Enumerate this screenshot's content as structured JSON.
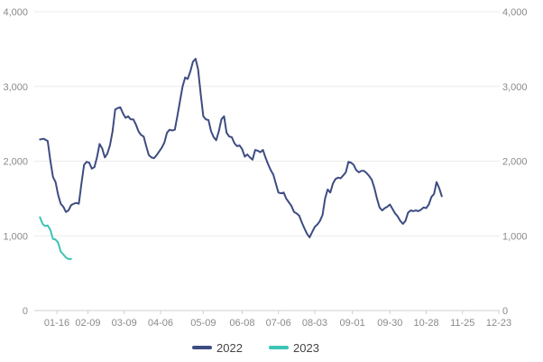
{
  "chart_data": {
    "type": "line",
    "x_tick_labels": [
      "01-16",
      "02-09",
      "03-09",
      "04-06",
      "05-09",
      "06-08",
      "07-06",
      "08-03",
      "09-01",
      "09-30",
      "10-28",
      "11-25",
      "12-23"
    ],
    "y_ticks_left": [
      "0",
      "1,000",
      "2,000",
      "3,000",
      "4,000"
    ],
    "y_ticks_right": [
      "0",
      "1,000",
      "2,000",
      "3,000",
      "4,000"
    ],
    "ylim": [
      0,
      4000
    ],
    "grid": true,
    "legend_position": "bottom",
    "series": [
      {
        "name": "2022",
        "color": "#3d4c82",
        "points": [
          [
            "01-03",
            2290
          ],
          [
            "01-06",
            2300
          ],
          [
            "01-09",
            2270
          ],
          [
            "01-11",
            2010
          ],
          [
            "01-13",
            1790
          ],
          [
            "01-15",
            1720
          ],
          [
            "01-17",
            1550
          ],
          [
            "01-19",
            1430
          ],
          [
            "01-21",
            1390
          ],
          [
            "01-23",
            1320
          ],
          [
            "01-25",
            1340
          ],
          [
            "01-27",
            1410
          ],
          [
            "01-29",
            1430
          ],
          [
            "01-31",
            1440
          ],
          [
            "02-02",
            1430
          ],
          [
            "02-04",
            1700
          ],
          [
            "02-06",
            1950
          ],
          [
            "02-08",
            1990
          ],
          [
            "02-10",
            1980
          ],
          [
            "02-12",
            1900
          ],
          [
            "02-14",
            1920
          ],
          [
            "02-16",
            2050
          ],
          [
            "02-18",
            2230
          ],
          [
            "02-20",
            2170
          ],
          [
            "02-22",
            2050
          ],
          [
            "02-24",
            2100
          ],
          [
            "02-26",
            2210
          ],
          [
            "02-28",
            2400
          ],
          [
            "03-02",
            2690
          ],
          [
            "03-04",
            2710
          ],
          [
            "03-06",
            2720
          ],
          [
            "03-08",
            2640
          ],
          [
            "03-10",
            2580
          ],
          [
            "03-12",
            2600
          ],
          [
            "03-14",
            2560
          ],
          [
            "03-16",
            2560
          ],
          [
            "03-18",
            2490
          ],
          [
            "03-20",
            2400
          ],
          [
            "03-22",
            2350
          ],
          [
            "03-24",
            2330
          ],
          [
            "03-26",
            2200
          ],
          [
            "03-28",
            2080
          ],
          [
            "03-30",
            2050
          ],
          [
            "04-01",
            2040
          ],
          [
            "04-03",
            2080
          ],
          [
            "04-05",
            2130
          ],
          [
            "04-07",
            2180
          ],
          [
            "04-09",
            2250
          ],
          [
            "04-11",
            2380
          ],
          [
            "04-13",
            2420
          ],
          [
            "04-15",
            2410
          ],
          [
            "04-17",
            2420
          ],
          [
            "04-19",
            2600
          ],
          [
            "04-21",
            2800
          ],
          [
            "04-23",
            3000
          ],
          [
            "04-25",
            3120
          ],
          [
            "04-27",
            3100
          ],
          [
            "04-29",
            3200
          ],
          [
            "05-01",
            3330
          ],
          [
            "05-03",
            3370
          ],
          [
            "05-05",
            3230
          ],
          [
            "05-07",
            2900
          ],
          [
            "05-09",
            2600
          ],
          [
            "05-11",
            2560
          ],
          [
            "05-13",
            2550
          ],
          [
            "05-15",
            2400
          ],
          [
            "05-17",
            2320
          ],
          [
            "05-19",
            2280
          ],
          [
            "05-21",
            2400
          ],
          [
            "05-23",
            2560
          ],
          [
            "05-25",
            2600
          ],
          [
            "05-27",
            2380
          ],
          [
            "05-29",
            2330
          ],
          [
            "05-31",
            2320
          ],
          [
            "06-02",
            2240
          ],
          [
            "06-04",
            2200
          ],
          [
            "06-06",
            2210
          ],
          [
            "06-08",
            2160
          ],
          [
            "06-10",
            2060
          ],
          [
            "06-12",
            2090
          ],
          [
            "06-14",
            2050
          ],
          [
            "06-16",
            2020
          ],
          [
            "06-18",
            2150
          ],
          [
            "06-20",
            2140
          ],
          [
            "06-22",
            2120
          ],
          [
            "06-24",
            2150
          ],
          [
            "06-26",
            2050
          ],
          [
            "06-28",
            1960
          ],
          [
            "06-30",
            1880
          ],
          [
            "07-02",
            1820
          ],
          [
            "07-04",
            1700
          ],
          [
            "07-06",
            1580
          ],
          [
            "07-08",
            1570
          ],
          [
            "07-10",
            1580
          ],
          [
            "07-12",
            1500
          ],
          [
            "07-14",
            1450
          ],
          [
            "07-16",
            1400
          ],
          [
            "07-18",
            1320
          ],
          [
            "07-20",
            1300
          ],
          [
            "07-22",
            1270
          ],
          [
            "07-24",
            1180
          ],
          [
            "07-26",
            1100
          ],
          [
            "07-28",
            1030
          ],
          [
            "07-30",
            980
          ],
          [
            "08-01",
            1050
          ],
          [
            "08-03",
            1120
          ],
          [
            "08-05",
            1150
          ],
          [
            "08-07",
            1200
          ],
          [
            "08-09",
            1280
          ],
          [
            "08-11",
            1500
          ],
          [
            "08-13",
            1620
          ],
          [
            "08-15",
            1580
          ],
          [
            "08-17",
            1700
          ],
          [
            "08-19",
            1760
          ],
          [
            "08-21",
            1780
          ],
          [
            "08-23",
            1770
          ],
          [
            "08-25",
            1810
          ],
          [
            "08-27",
            1850
          ],
          [
            "08-29",
            1990
          ],
          [
            "08-31",
            1980
          ],
          [
            "09-02",
            1950
          ],
          [
            "09-04",
            1880
          ],
          [
            "09-06",
            1850
          ],
          [
            "09-08",
            1870
          ],
          [
            "09-10",
            1870
          ],
          [
            "09-12",
            1840
          ],
          [
            "09-14",
            1800
          ],
          [
            "09-16",
            1750
          ],
          [
            "09-18",
            1640
          ],
          [
            "09-20",
            1500
          ],
          [
            "09-22",
            1380
          ],
          [
            "09-24",
            1340
          ],
          [
            "09-26",
            1370
          ],
          [
            "09-28",
            1390
          ],
          [
            "09-30",
            1420
          ],
          [
            "10-02",
            1360
          ],
          [
            "10-04",
            1300
          ],
          [
            "10-06",
            1260
          ],
          [
            "10-08",
            1200
          ],
          [
            "10-10",
            1160
          ],
          [
            "10-12",
            1200
          ],
          [
            "10-14",
            1310
          ],
          [
            "10-16",
            1340
          ],
          [
            "10-18",
            1330
          ],
          [
            "10-20",
            1340
          ],
          [
            "10-22",
            1330
          ],
          [
            "10-24",
            1350
          ],
          [
            "10-26",
            1380
          ],
          [
            "10-28",
            1370
          ],
          [
            "10-30",
            1420
          ],
          [
            "11-01",
            1520
          ],
          [
            "11-03",
            1560
          ],
          [
            "11-05",
            1720
          ],
          [
            "11-07",
            1640
          ],
          [
            "11-09",
            1530
          ]
        ]
      },
      {
        "name": "2023",
        "color": "#3cc4b4",
        "points": [
          [
            "01-03",
            1250
          ],
          [
            "01-05",
            1160
          ],
          [
            "01-07",
            1130
          ],
          [
            "01-09",
            1140
          ],
          [
            "01-11",
            1080
          ],
          [
            "01-13",
            960
          ],
          [
            "01-15",
            950
          ],
          [
            "01-17",
            910
          ],
          [
            "01-19",
            790
          ],
          [
            "01-21",
            750
          ],
          [
            "01-23",
            710
          ],
          [
            "01-25",
            690
          ],
          [
            "01-27",
            690
          ]
        ]
      }
    ]
  }
}
